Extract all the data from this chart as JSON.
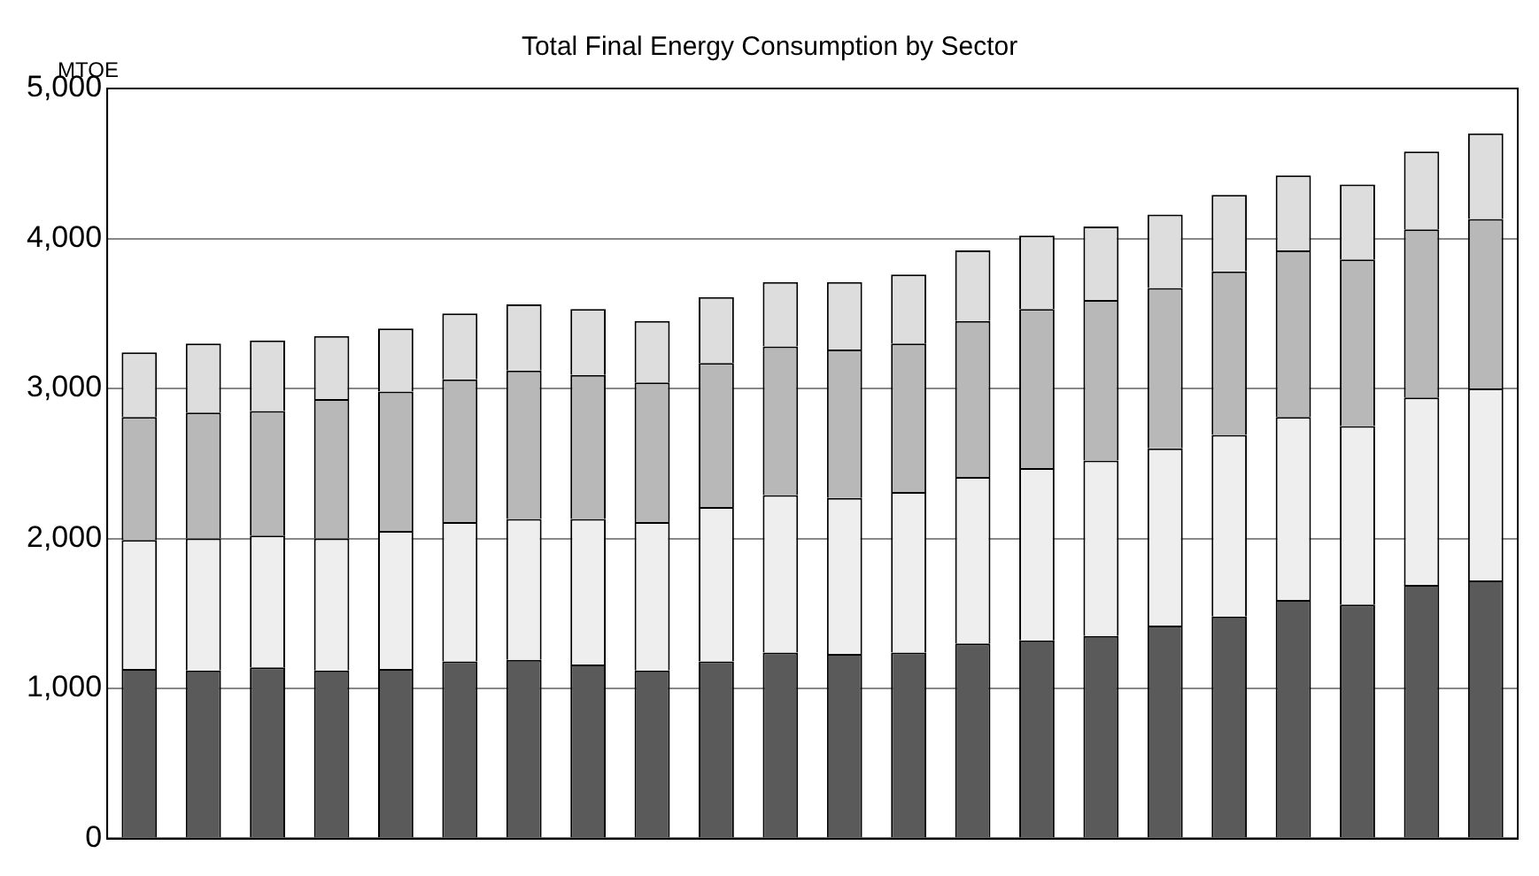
{
  "chart_data": {
    "type": "bar",
    "title": "Total Final Energy Consumption by Sector",
    "ylabel": "MTOE",
    "stacked": true,
    "grid": "y",
    "tick_labels": "y",
    "legend": false,
    "categories": [
      null,
      null,
      null,
      null,
      null,
      null,
      null,
      null,
      null,
      null,
      null,
      null,
      null,
      null,
      null,
      null,
      null,
      null,
      null,
      null,
      null,
      null
    ],
    "ylim": [
      0,
      5000
    ],
    "yticks": [
      {
        "value": 0,
        "label": "0"
      },
      {
        "value": 1000,
        "label": "1,000"
      },
      {
        "value": 2000,
        "label": "2,000"
      },
      {
        "value": 3000,
        "label": "3,000"
      },
      {
        "value": 4000,
        "label": "4,000"
      },
      {
        "value": 5000,
        "label": "5,000"
      }
    ],
    "series": [
      {
        "color": "#5a5a5a",
        "values": [
          1130,
          1120,
          1140,
          1120,
          1130,
          1180,
          1190,
          1160,
          1120,
          1180,
          1240,
          1230,
          1240,
          1300,
          1320,
          1350,
          1420,
          1480,
          1590,
          1560,
          1690,
          1720
        ]
      },
      {
        "color": "#eeeeee",
        "values": [
          860,
          880,
          880,
          880,
          920,
          930,
          940,
          970,
          990,
          1030,
          1050,
          1040,
          1070,
          1110,
          1150,
          1170,
          1180,
          1210,
          1220,
          1190,
          1250,
          1280
        ]
      },
      {
        "color": "#b8b8b8",
        "values": [
          820,
          840,
          830,
          930,
          930,
          950,
          990,
          960,
          930,
          960,
          990,
          990,
          990,
          1040,
          1060,
          1070,
          1070,
          1090,
          1110,
          1110,
          1120,
          1130
        ]
      },
      {
        "color": "#dddddd",
        "values": [
          430,
          460,
          470,
          420,
          420,
          440,
          440,
          440,
          410,
          440,
          430,
          450,
          460,
          470,
          490,
          490,
          490,
          510,
          500,
          500,
          520,
          570
        ]
      }
    ]
  }
}
